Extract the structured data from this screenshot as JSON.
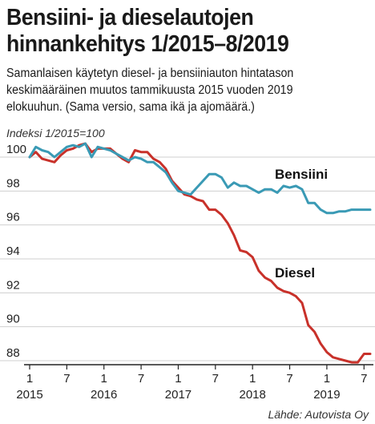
{
  "title_line1": "Bensiini- ja dieselautojen",
  "title_line2": "hinnankehitys 1/2015–8/2019",
  "subtitle_line1": "Samanlaisen käytetyn diesel- ja bensiiniauton hintatason",
  "subtitle_line2": "keskimääräinen muutos tammikuusta 2015 vuoden 2019",
  "subtitle_line3": "elokuuhun. (Sama versio, sama ikä ja ajomäärä.)",
  "source": "Lähde: Autovista Oy",
  "chart_data": {
    "type": "line",
    "title": "Bensiini- ja dieselautojen hinnankehitys 1/2015–8/2019",
    "ylabel": "Indeksi 1/2015=100",
    "ylim": [
      87.5,
      101.5
    ],
    "yticks": [
      "100",
      "98",
      "96",
      "94",
      "92",
      "90",
      "88"
    ],
    "ytick_values": [
      100,
      98,
      96,
      94,
      92,
      90,
      88
    ],
    "xtick_months": [
      "1",
      "7",
      "1",
      "7",
      "1",
      "7",
      "1",
      "7",
      "1",
      "7"
    ],
    "xtick_years": [
      "2015",
      "2016",
      "2017",
      "2018",
      "2019"
    ],
    "grid": "horizontal",
    "x": [
      "1/2015",
      "2/2015",
      "3/2015",
      "4/2015",
      "5/2015",
      "6/2015",
      "7/2015",
      "8/2015",
      "9/2015",
      "10/2015",
      "11/2015",
      "12/2015",
      "1/2016",
      "2/2016",
      "3/2016",
      "4/2016",
      "5/2016",
      "6/2016",
      "7/2016",
      "8/2016",
      "9/2016",
      "10/2016",
      "11/2016",
      "12/2016",
      "1/2017",
      "2/2017",
      "3/2017",
      "4/2017",
      "5/2017",
      "6/2017",
      "7/2017",
      "8/2017",
      "9/2017",
      "10/2017",
      "11/2017",
      "12/2017",
      "1/2018",
      "2/2018",
      "3/2018",
      "4/2018",
      "5/2018",
      "6/2018",
      "7/2018",
      "8/2018",
      "9/2018",
      "10/2018",
      "11/2018",
      "12/2018",
      "1/2019",
      "2/2019",
      "3/2019",
      "4/2019",
      "5/2019",
      "6/2019",
      "7/2019",
      "8/2019"
    ],
    "series": [
      {
        "name": "Bensiini",
        "color": "#3a9ab5",
        "values": [
          100.0,
          100.6,
          100.4,
          100.3,
          100.0,
          100.3,
          100.6,
          100.7,
          100.6,
          100.8,
          100.0,
          100.6,
          100.5,
          100.4,
          100.2,
          100.0,
          99.8,
          100.0,
          99.9,
          99.7,
          99.7,
          99.4,
          99.1,
          98.5,
          98.0,
          97.9,
          97.8,
          98.2,
          98.6,
          99.0,
          99.0,
          98.8,
          98.2,
          98.5,
          98.3,
          98.3,
          98.1,
          97.9,
          98.1,
          98.1,
          97.9,
          98.3,
          98.2,
          98.3,
          98.1,
          97.3,
          97.3,
          96.9,
          96.7,
          96.7,
          96.8,
          96.8,
          96.9,
          96.9,
          96.9,
          96.9
        ]
      },
      {
        "name": "Diesel",
        "color": "#c8312a",
        "values": [
          100.0,
          100.3,
          99.9,
          99.8,
          99.7,
          100.1,
          100.4,
          100.5,
          100.7,
          100.8,
          100.3,
          100.5,
          100.5,
          100.5,
          100.2,
          99.9,
          99.7,
          100.4,
          100.3,
          100.3,
          99.9,
          99.7,
          99.3,
          98.6,
          98.2,
          97.8,
          97.7,
          97.5,
          97.4,
          96.9,
          96.9,
          96.6,
          96.1,
          95.4,
          94.5,
          94.4,
          94.1,
          93.3,
          92.9,
          92.7,
          92.3,
          92.1,
          92.0,
          91.8,
          91.4,
          90.1,
          89.7,
          89.0,
          88.5,
          88.2,
          88.1,
          88.0,
          87.9,
          87.9,
          88.4,
          88.4
        ]
      }
    ]
  }
}
